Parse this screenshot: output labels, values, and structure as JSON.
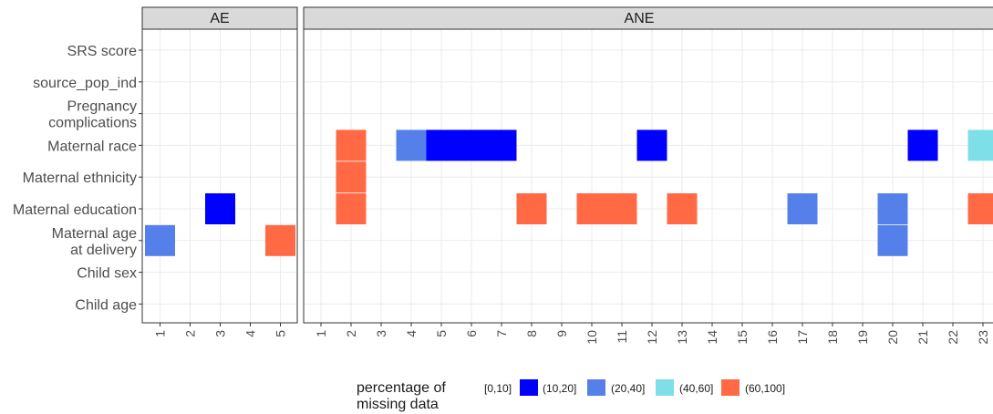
{
  "chart_data": {
    "type": "heatmap",
    "y_categories": [
      "SRS score",
      "source_pop_ind",
      "Pregnancy\ncomplications",
      "Maternal race",
      "Maternal ethnicity",
      "Maternal education",
      "Maternal age\nat delivery",
      "Child sex",
      "Child age"
    ],
    "panels": [
      {
        "strip": "AE",
        "x_ticks": [
          1,
          2,
          3,
          4,
          5
        ],
        "cells": [
          {
            "x": 1,
            "y": "Maternal age\nat delivery",
            "bin": "(10,20]"
          },
          {
            "x": 3,
            "y": "Maternal education",
            "bin": "[0,10]"
          },
          {
            "x": 5,
            "y": "Maternal age\nat delivery",
            "bin": "(60,100]"
          }
        ]
      },
      {
        "strip": "ANE",
        "x_ticks": [
          1,
          2,
          3,
          4,
          5,
          6,
          7,
          8,
          9,
          10,
          11,
          12,
          13,
          14,
          15,
          16,
          17,
          18,
          19,
          20,
          21,
          22,
          23
        ],
        "cells": [
          {
            "x": 2,
            "y": "Maternal race",
            "bin": "(60,100]"
          },
          {
            "x": 2,
            "y": "Maternal ethnicity",
            "bin": "(60,100]"
          },
          {
            "x": 2,
            "y": "Maternal education",
            "bin": "(60,100]"
          },
          {
            "x": 4,
            "y": "Maternal race",
            "bin": "(10,20]"
          },
          {
            "x": 5,
            "y": "Maternal race",
            "bin": "[0,10]"
          },
          {
            "x": 6,
            "y": "Maternal race",
            "bin": "[0,10]"
          },
          {
            "x": 7,
            "y": "Maternal race",
            "bin": "[0,10]"
          },
          {
            "x": 8,
            "y": "Maternal education",
            "bin": "(60,100]"
          },
          {
            "x": 10,
            "y": "Maternal education",
            "bin": "(60,100]"
          },
          {
            "x": 11,
            "y": "Maternal education",
            "bin": "(60,100]"
          },
          {
            "x": 12,
            "y": "Maternal race",
            "bin": "[0,10]"
          },
          {
            "x": 13,
            "y": "Maternal education",
            "bin": "(60,100]"
          },
          {
            "x": 17,
            "y": "Maternal education",
            "bin": "(10,20]"
          },
          {
            "x": 20,
            "y": "Maternal education",
            "bin": "(10,20]"
          },
          {
            "x": 20,
            "y": "Maternal age\nat delivery",
            "bin": "(10,20]"
          },
          {
            "x": 21,
            "y": "Maternal race",
            "bin": "[0,10]"
          },
          {
            "x": 23,
            "y": "Maternal race",
            "bin": "(20,40]"
          },
          {
            "x": 23,
            "y": "Maternal education",
            "bin": "(60,100]"
          }
        ]
      }
    ],
    "legend": {
      "title": "percentage of\nmissing data",
      "position": "bottom",
      "items": [
        {
          "label": "[0,10]",
          "color": "#0000ff"
        },
        {
          "label": "(10,20]",
          "color": "#5580ea"
        },
        {
          "label": "(20,40]",
          "color": "#7fdfe8"
        },
        {
          "label": "(40,60]",
          "color": "#ff6a45"
        },
        {
          "label": "(60,100]",
          "color": null
        }
      ]
    },
    "grid": true,
    "theme": "light"
  },
  "colors": {
    "[0,10]": "#0000ff",
    "(10,20]": "#5580ea",
    "(20,40]": "#7fdfe8",
    "(60,100]": "#ff6a45",
    "strip_fill": "#d9d9d9",
    "grid": "#ebebeb"
  }
}
